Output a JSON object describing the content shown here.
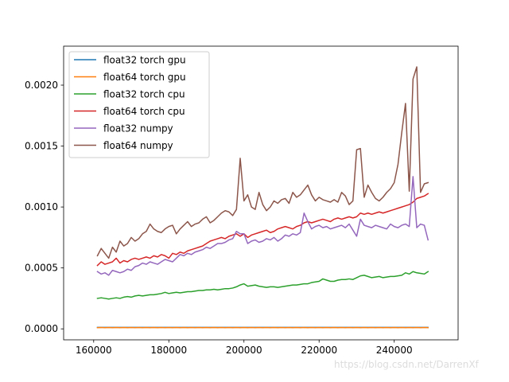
{
  "chart_data": {
    "type": "line",
    "xlim": [
      152000,
      257000
    ],
    "ylim": [
      -9e-05,
      0.00232
    ],
    "x_ticks": [
      {
        "value": 160000,
        "label": "160000"
      },
      {
        "value": 180000,
        "label": "180000"
      },
      {
        "value": 200000,
        "label": "200000"
      },
      {
        "value": 220000,
        "label": "220000"
      },
      {
        "value": 240000,
        "label": "240000"
      }
    ],
    "y_ticks": [
      {
        "value": 0.0,
        "label": "0.0000"
      },
      {
        "value": 0.0005,
        "label": "0.0005"
      },
      {
        "value": 0.001,
        "label": "0.0010"
      },
      {
        "value": 0.0015,
        "label": "0.0015"
      },
      {
        "value": 0.002,
        "label": "0.0020"
      }
    ],
    "grid": false,
    "legend_position": "top-left",
    "x": [
      161000,
      162000,
      163000,
      164000,
      165000,
      166000,
      167000,
      168000,
      169000,
      170000,
      171000,
      172000,
      173000,
      174000,
      175000,
      176000,
      177000,
      178000,
      179000,
      180000,
      181000,
      182000,
      183000,
      184000,
      185000,
      186000,
      187000,
      188000,
      189000,
      190000,
      191000,
      192000,
      193000,
      194000,
      195000,
      196000,
      197000,
      198000,
      199000,
      200000,
      201000,
      202000,
      203000,
      204000,
      205000,
      206000,
      207000,
      208000,
      209000,
      210000,
      211000,
      212000,
      213000,
      214000,
      215000,
      216000,
      217000,
      218000,
      219000,
      220000,
      221000,
      222000,
      223000,
      224000,
      225000,
      226000,
      227000,
      228000,
      229000,
      230000,
      231000,
      232000,
      233000,
      234000,
      235000,
      236000,
      237000,
      238000,
      239000,
      240000,
      241000,
      242000,
      243000,
      244000,
      245000,
      246000,
      247000,
      248000,
      249000
    ],
    "series": [
      {
        "name": "float32 torch gpu",
        "color": "#1f77b4",
        "values": [
          1.2e-05,
          1.2e-05,
          1.2e-05,
          1.2e-05,
          1.2e-05,
          1.2e-05,
          1.2e-05,
          1.2e-05,
          1.2e-05,
          1.2e-05,
          1.2e-05,
          1.2e-05,
          1.2e-05,
          1.2e-05,
          1.2e-05,
          1.2e-05,
          1.2e-05,
          1.2e-05,
          1.2e-05,
          1.2e-05,
          1.2e-05,
          1.2e-05,
          1.2e-05,
          1.2e-05,
          1.2e-05,
          1.2e-05,
          1.2e-05,
          1.2e-05,
          1.2e-05,
          1.2e-05,
          1.2e-05,
          1.2e-05,
          1.2e-05,
          1.2e-05,
          1.2e-05,
          1.2e-05,
          1.2e-05,
          1.2e-05,
          1.2e-05,
          1.2e-05,
          1.2e-05,
          1.2e-05,
          1.2e-05,
          1.2e-05,
          1.2e-05,
          1.2e-05,
          1.2e-05,
          1.2e-05,
          1.2e-05,
          1.2e-05,
          1.2e-05,
          1.2e-05,
          1.2e-05,
          1.2e-05,
          1.2e-05,
          1.2e-05,
          1.2e-05,
          1.2e-05,
          1.2e-05,
          1.2e-05,
          1.2e-05,
          1.2e-05,
          1.2e-05,
          1.2e-05,
          1.2e-05,
          1.2e-05,
          1.2e-05,
          1.2e-05,
          1.2e-05,
          1.2e-05,
          1.2e-05,
          1.2e-05,
          1.2e-05,
          1.2e-05,
          1.2e-05,
          1.2e-05,
          1.2e-05,
          1.2e-05,
          1.2e-05,
          1.2e-05,
          1.2e-05,
          1.2e-05,
          1.2e-05,
          1.2e-05,
          1.2e-05,
          1.2e-05,
          1.2e-05,
          1.2e-05,
          1.2e-05
        ]
      },
      {
        "name": "float64 torch gpu",
        "color": "#ff7f0e",
        "values": [
          1e-05,
          1.1e-05,
          1e-05,
          1.1e-05,
          1e-05,
          1.1e-05,
          1e-05,
          1.1e-05,
          1e-05,
          1.1e-05,
          1e-05,
          1.1e-05,
          1e-05,
          1.1e-05,
          1e-05,
          1.1e-05,
          1e-05,
          1.1e-05,
          1e-05,
          1.1e-05,
          1e-05,
          1.1e-05,
          1e-05,
          1.1e-05,
          1e-05,
          1.1e-05,
          1e-05,
          1.1e-05,
          1e-05,
          1.1e-05,
          1e-05,
          1.1e-05,
          1e-05,
          1.1e-05,
          1e-05,
          1.1e-05,
          1e-05,
          1.1e-05,
          1e-05,
          1.1e-05,
          1e-05,
          1.1e-05,
          1e-05,
          1.1e-05,
          1e-05,
          1.1e-05,
          1e-05,
          1.1e-05,
          1e-05,
          1.1e-05,
          1e-05,
          1.1e-05,
          1e-05,
          1.1e-05,
          1e-05,
          1.1e-05,
          1e-05,
          1.1e-05,
          1e-05,
          1.1e-05,
          1e-05,
          1.1e-05,
          1e-05,
          1.1e-05,
          1e-05,
          1.1e-05,
          1e-05,
          1.1e-05,
          1e-05,
          1.1e-05,
          1e-05,
          1.1e-05,
          1e-05,
          1.1e-05,
          1e-05,
          1.1e-05,
          1e-05,
          1.1e-05,
          1e-05,
          1.1e-05,
          1e-05,
          1.1e-05,
          1e-05,
          1.1e-05,
          1e-05,
          1.1e-05,
          1e-05,
          1.1e-05,
          1e-05
        ]
      },
      {
        "name": "float32 torch cpu",
        "color": "#2ca02c",
        "values": [
          0.00025,
          0.000255,
          0.00025,
          0.000245,
          0.00025,
          0.000255,
          0.00025,
          0.00026,
          0.000265,
          0.00026,
          0.00027,
          0.000275,
          0.00027,
          0.000275,
          0.00028,
          0.00028,
          0.000285,
          0.00029,
          0.0003,
          0.00029,
          0.000295,
          0.0003,
          0.000295,
          0.0003,
          0.000305,
          0.000305,
          0.00031,
          0.000315,
          0.000315,
          0.00032,
          0.00032,
          0.000325,
          0.00032,
          0.000325,
          0.00033,
          0.00033,
          0.000335,
          0.000345,
          0.00036,
          0.00037,
          0.00035,
          0.000355,
          0.00036,
          0.00035,
          0.000345,
          0.00034,
          0.000345,
          0.000345,
          0.00034,
          0.000345,
          0.00035,
          0.000355,
          0.00036,
          0.00036,
          0.000365,
          0.00037,
          0.00037,
          0.00038,
          0.000385,
          0.00039,
          0.00041,
          0.0004,
          0.00039,
          0.00039,
          0.0004,
          0.000405,
          0.000405,
          0.00041,
          0.000405,
          0.00042,
          0.000435,
          0.00044,
          0.00043,
          0.00042,
          0.000425,
          0.00043,
          0.00042,
          0.000425,
          0.00043,
          0.00043,
          0.000435,
          0.00044,
          0.00046,
          0.00045,
          0.00047,
          0.00046,
          0.000455,
          0.00045,
          0.00047
        ]
      },
      {
        "name": "float64 torch cpu",
        "color": "#d62728",
        "values": [
          0.00052,
          0.00055,
          0.00053,
          0.00054,
          0.00055,
          0.00058,
          0.00054,
          0.00056,
          0.00055,
          0.00057,
          0.00058,
          0.00057,
          0.00058,
          0.00059,
          0.00058,
          0.0006,
          0.00059,
          0.00061,
          0.0006,
          0.00058,
          0.00062,
          0.00061,
          0.00063,
          0.00062,
          0.00064,
          0.00065,
          0.00066,
          0.00067,
          0.00068,
          0.0007,
          0.00072,
          0.00073,
          0.00074,
          0.00075,
          0.00074,
          0.00076,
          0.00077,
          0.00078,
          0.00076,
          0.00078,
          0.00075,
          0.00077,
          0.00078,
          0.00079,
          0.0008,
          0.00081,
          0.00079,
          0.0008,
          0.00082,
          0.00083,
          0.00084,
          0.00083,
          0.00082,
          0.00084,
          0.00085,
          0.00087,
          0.00088,
          0.00087,
          0.00088,
          0.00089,
          0.0009,
          0.00089,
          0.00088,
          0.0009,
          0.00091,
          0.0009,
          0.00091,
          0.00092,
          0.00091,
          0.00092,
          0.00095,
          0.00094,
          0.00095,
          0.00094,
          0.00095,
          0.00096,
          0.00095,
          0.00096,
          0.00097,
          0.00098,
          0.00099,
          0.001,
          0.00101,
          0.00102,
          0.00104,
          0.00107,
          0.00108,
          0.00109,
          0.00111
        ]
      },
      {
        "name": "float32 numpy",
        "color": "#9467bd",
        "values": [
          0.00047,
          0.00045,
          0.00046,
          0.00044,
          0.00048,
          0.00047,
          0.00046,
          0.00047,
          0.00049,
          0.00048,
          0.00051,
          0.00052,
          0.00054,
          0.00053,
          0.00055,
          0.00054,
          0.00053,
          0.00055,
          0.00057,
          0.00056,
          0.00055,
          0.00058,
          0.00061,
          0.0006,
          0.00062,
          0.00061,
          0.00063,
          0.00064,
          0.00065,
          0.00067,
          0.00066,
          0.00068,
          0.0007,
          0.0007,
          0.00071,
          0.00073,
          0.00074,
          0.0008,
          0.00078,
          0.00078,
          0.0007,
          0.00072,
          0.00073,
          0.00071,
          0.00072,
          0.00074,
          0.00073,
          0.00075,
          0.00072,
          0.00074,
          0.00077,
          0.00076,
          0.00078,
          0.00077,
          0.00079,
          0.00095,
          0.00088,
          0.00082,
          0.00084,
          0.00085,
          0.00083,
          0.00084,
          0.00082,
          0.00083,
          0.00084,
          0.00085,
          0.00083,
          0.00086,
          0.00081,
          0.00076,
          0.0009,
          0.00085,
          0.00084,
          0.00083,
          0.00085,
          0.00084,
          0.00083,
          0.00082,
          0.00086,
          0.00084,
          0.00083,
          0.00085,
          0.00086,
          0.00084,
          0.00125,
          0.00083,
          0.00086,
          0.00085,
          0.00073
        ]
      },
      {
        "name": "float64 numpy",
        "color": "#8c564b",
        "values": [
          0.0006,
          0.00066,
          0.00062,
          0.00058,
          0.00067,
          0.00063,
          0.00072,
          0.00068,
          0.0007,
          0.00075,
          0.00072,
          0.00074,
          0.00078,
          0.0008,
          0.00086,
          0.00082,
          0.0008,
          0.00079,
          0.00082,
          0.00084,
          0.00085,
          0.00078,
          0.00082,
          0.00085,
          0.00088,
          0.00084,
          0.00086,
          0.00087,
          0.0009,
          0.00092,
          0.00087,
          0.00089,
          0.00092,
          0.00095,
          0.00097,
          0.00096,
          0.00093,
          0.00098,
          0.0014,
          0.00105,
          0.0011,
          0.001,
          0.00098,
          0.00112,
          0.00102,
          0.00097,
          0.001,
          0.00105,
          0.00103,
          0.00106,
          0.00107,
          0.00103,
          0.00112,
          0.00108,
          0.0011,
          0.00114,
          0.00118,
          0.0011,
          0.00105,
          0.00108,
          0.00106,
          0.00105,
          0.00104,
          0.00106,
          0.00104,
          0.00112,
          0.00109,
          0.00102,
          0.00105,
          0.00147,
          0.00148,
          0.00108,
          0.00118,
          0.00112,
          0.00107,
          0.00105,
          0.00108,
          0.00112,
          0.00115,
          0.0012,
          0.00135,
          0.00161,
          0.00185,
          0.00113,
          0.00205,
          0.00215,
          0.00112,
          0.00119,
          0.0012
        ]
      }
    ]
  },
  "watermark": "https://blog.csdn.net/DarrenXf"
}
